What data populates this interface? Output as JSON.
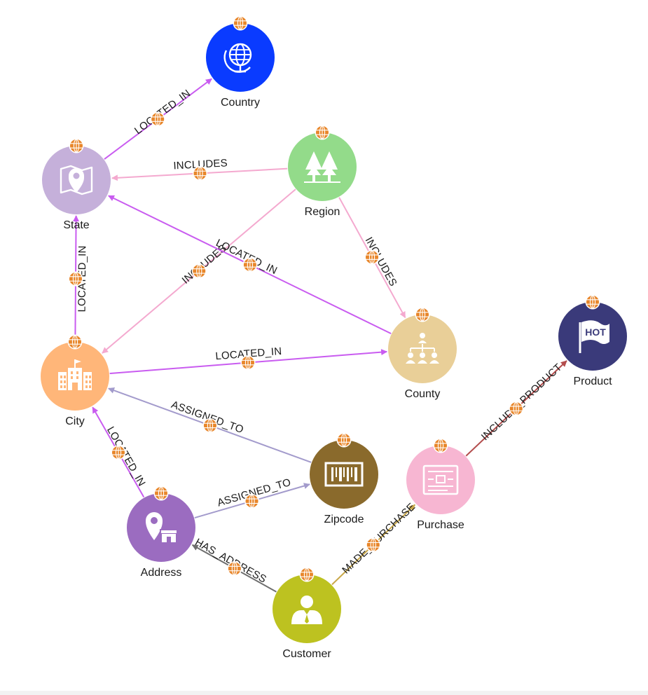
{
  "colors": {
    "badge": "#E8862A",
    "badge_line": "#ffffff"
  },
  "nodes": [
    {
      "id": "country",
      "label": "Country",
      "color": "#0A3BFF",
      "icon": "globe-icon"
    },
    {
      "id": "state",
      "label": "State",
      "color": "#C5B0DA",
      "icon": "map-pin-icon"
    },
    {
      "id": "region",
      "label": "Region",
      "color": "#93DB8A",
      "icon": "trees-icon"
    },
    {
      "id": "county",
      "label": "County",
      "color": "#E9CF98",
      "icon": "org-chart-icon"
    },
    {
      "id": "product",
      "label": "Product",
      "color": "#3A3A7A",
      "icon": "hot-flag-icon"
    },
    {
      "id": "city",
      "label": "City",
      "color": "#FFB679",
      "icon": "city-building-icon"
    },
    {
      "id": "zipcode",
      "label": "Zipcode",
      "color": "#8A6A2C",
      "icon": "barcode-icon"
    },
    {
      "id": "purchase",
      "label": "Purchase",
      "color": "#F7B6D2",
      "icon": "receipt-icon"
    },
    {
      "id": "address",
      "label": "Address",
      "color": "#9B6CC0",
      "icon": "location-store-icon"
    },
    {
      "id": "customer",
      "label": "Customer",
      "color": "#BDC220",
      "icon": "person-icon"
    }
  ],
  "edges": [
    {
      "from": "state",
      "to": "country",
      "label": "LOCATED_IN",
      "color": "#C95CF0"
    },
    {
      "from": "region",
      "to": "state",
      "label": "INCLUDES",
      "color": "#F4A9CF"
    },
    {
      "from": "region",
      "to": "county",
      "label": "INCLUDES",
      "color": "#F4A9CF"
    },
    {
      "from": "region",
      "to": "city",
      "label": "INCLUDES",
      "color": "#F4A9CF"
    },
    {
      "from": "county",
      "to": "state",
      "label": "LOCATED_IN",
      "color": "#C95CF0"
    },
    {
      "from": "city",
      "to": "state",
      "label": "LOCATED_IN",
      "color": "#C95CF0"
    },
    {
      "from": "city",
      "to": "county",
      "label": "LOCATED_IN",
      "color": "#C95CF0"
    },
    {
      "from": "zipcode",
      "to": "city",
      "label": "ASSIGNED_TO",
      "color": "#A39BCC"
    },
    {
      "from": "address",
      "to": "city",
      "label": "LOCATED_IN",
      "color": "#C95CF0"
    },
    {
      "from": "address",
      "to": "zipcode",
      "label": "ASSIGNED_TO",
      "color": "#A39BCC"
    },
    {
      "from": "customer",
      "to": "address",
      "label": "HAS_ADDRESS",
      "color": "#6E6E6E"
    },
    {
      "from": "customer",
      "to": "purchase",
      "label": "MADE_PURCHASE",
      "color": "#C9A84A"
    },
    {
      "from": "purchase",
      "to": "product",
      "label": "INCLUDE_PRODUCT",
      "color": "#B34D4D"
    }
  ]
}
